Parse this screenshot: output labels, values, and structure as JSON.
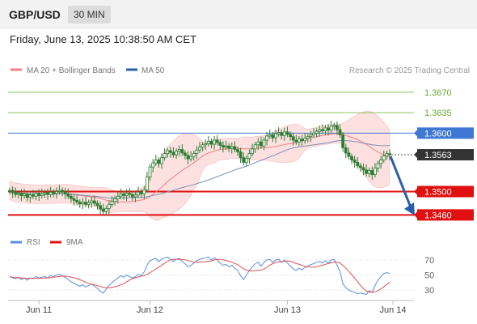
{
  "header": {
    "symbol": "GBP/USD",
    "timeframe": "30 MIN",
    "timestamp": "Friday, June 13, 2025 10:38:50 AM CET"
  },
  "legend": {
    "ma20": "MA 20 + Bollinger Bands",
    "ma50": "MA 50",
    "credit": "Research © 2025 Trading Central",
    "rsi": "RSI",
    "ma9": "9MA"
  },
  "colors": {
    "candle": "#2e7d32",
    "ma20": "#f08080",
    "bands_fill": "#fde0e0",
    "ma50": "#7a8fb5",
    "resistance": "#8cbf5a",
    "pivot": "#3f77d4",
    "support": "#e01010",
    "current": "#333333",
    "arrow": "#2b5fa8",
    "rsi": "#5b8be0",
    "ma9": "#e05050"
  },
  "chart_data": [
    {
      "type": "candlestick",
      "x_ticks": [
        "Jun 11",
        "Jun 12",
        "Jun 13",
        "Jun 14"
      ],
      "ylim": [
        1.3448,
        1.3692
      ],
      "levels": [
        {
          "label": "1.3670",
          "value": 1.367,
          "kind": "resistance"
        },
        {
          "label": "1.3635",
          "value": 1.3635,
          "kind": "resistance"
        },
        {
          "label": "1.3600",
          "value": 1.36,
          "kind": "pivot"
        },
        {
          "label": "1.3563",
          "value": 1.3563,
          "kind": "current"
        },
        {
          "label": "1.3500",
          "value": 1.35,
          "kind": "support"
        },
        {
          "label": "1.3460",
          "value": 1.346,
          "kind": "support"
        }
      ],
      "close": [
        1.3502,
        1.3498,
        1.3495,
        1.3497,
        1.3493,
        1.3496,
        1.349,
        1.3494,
        1.3492,
        1.3497,
        1.3493,
        1.3496,
        1.3498,
        1.3495,
        1.3499,
        1.3497,
        1.35,
        1.3502,
        1.3499,
        1.3496,
        1.3492,
        1.3488,
        1.3485,
        1.3482,
        1.3479,
        1.3482,
        1.3478,
        1.3481,
        1.3484,
        1.348,
        1.3476,
        1.347,
        1.3466,
        1.3471,
        1.3478,
        1.3483,
        1.3488,
        1.3492,
        1.3496,
        1.3493,
        1.3497,
        1.3495,
        1.3491,
        1.3494,
        1.3499,
        1.3496,
        1.3503,
        1.3525,
        1.3542,
        1.3549,
        1.3554,
        1.3548,
        1.3558,
        1.3565,
        1.357,
        1.3567,
        1.3563,
        1.3569,
        1.3572,
        1.3566,
        1.3562,
        1.3556,
        1.356,
        1.3565,
        1.3571,
        1.3576,
        1.358,
        1.3582,
        1.3586,
        1.3581,
        1.3588,
        1.3584,
        1.3579,
        1.3576,
        1.3578,
        1.3574,
        1.3577,
        1.3572,
        1.3568,
        1.3558,
        1.355,
        1.3557,
        1.3565,
        1.3573,
        1.358,
        1.3585,
        1.3578,
        1.3588,
        1.3595,
        1.3597,
        1.3592,
        1.3599,
        1.3601,
        1.3596,
        1.3602,
        1.3598,
        1.3594,
        1.3588,
        1.3585,
        1.359,
        1.3587,
        1.3591,
        1.3594,
        1.3597,
        1.36,
        1.3603,
        1.3606,
        1.3604,
        1.3609,
        1.3605,
        1.3612,
        1.3613,
        1.3606,
        1.3597,
        1.3575,
        1.3566,
        1.356,
        1.3554,
        1.355,
        1.3544,
        1.3541,
        1.3537,
        1.3531,
        1.3536,
        1.3529,
        1.354,
        1.3548,
        1.3554,
        1.3561,
        1.3565,
        1.3563
      ],
      "rsi": [
        48,
        46,
        45,
        47,
        44,
        46,
        43,
        46,
        45,
        48,
        46,
        47,
        48,
        46,
        49,
        48,
        50,
        51,
        49,
        47,
        44,
        41,
        39,
        37,
        35,
        37,
        34,
        36,
        38,
        35,
        32,
        28,
        26,
        31,
        36,
        40,
        43,
        46,
        49,
        47,
        50,
        48,
        46,
        48,
        51,
        49,
        54,
        63,
        69,
        71,
        72,
        68,
        71,
        73,
        74,
        71,
        68,
        71,
        72,
        68,
        65,
        61,
        63,
        66,
        69,
        71,
        72,
        73,
        74,
        70,
        73,
        70,
        66,
        63,
        64,
        61,
        63,
        59,
        56,
        49,
        44,
        50,
        56,
        61,
        65,
        67,
        62,
        67,
        70,
        71,
        67,
        70,
        71,
        67,
        70,
        66,
        62,
        58,
        56,
        59,
        57,
        60,
        62,
        64,
        65,
        67,
        68,
        66,
        69,
        66,
        70,
        71,
        63,
        55,
        38,
        33,
        30,
        28,
        27,
        25,
        26,
        25,
        24,
        29,
        27,
        36,
        43,
        48,
        52,
        53,
        52
      ],
      "rsi_ticks": [
        70,
        50,
        30
      ]
    }
  ]
}
